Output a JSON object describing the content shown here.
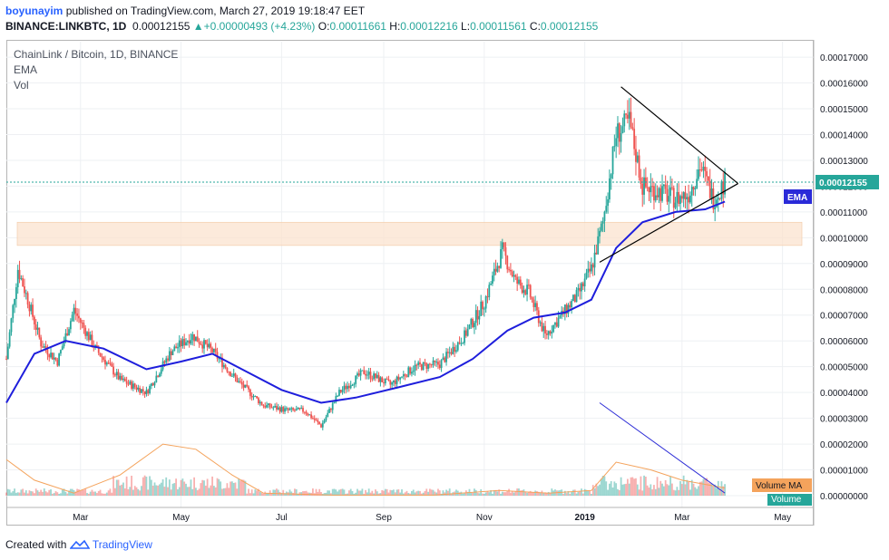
{
  "header": {
    "username": "boyunayim",
    "published_text": "published on TradingView.com, March 27, 2019 19:18:47 EET",
    "symbol": "BINANCE:LINKBTC, 1D",
    "last_price": "0.00012155",
    "change_arrow": "▲",
    "change": "+0.00000493 (+4.23%)",
    "o_label": "O:",
    "o_value": "0.00011661",
    "h_label": "H:",
    "h_value": "0.00012216",
    "l_label": "L:",
    "l_value": "0.00011561",
    "c_label": "C:",
    "c_value": "0.00012155"
  },
  "legend": {
    "title": "ChainLink / Bitcoin, 1D, BINANCE",
    "ema": "EMA",
    "vol": "Vol"
  },
  "labels": {
    "price_tag": "0.00012155",
    "ema_tag": "EMA",
    "volume_ma_tag": "Volume MA",
    "volume_tag": "Volume"
  },
  "footer": {
    "created_with": "Created with",
    "brand": "TradingView"
  },
  "colors": {
    "up": "#26a69a",
    "down": "#ef5350",
    "ema": "#1e1edc",
    "volume_ma": "#f4a35c",
    "zone": "#fbe3cf",
    "price_tag": "#26a69a",
    "ema_tag": "#2a2ad8",
    "volume_ma_tag": "#f4a35c"
  },
  "chart_data": {
    "type": "candlestick",
    "title": "ChainLink / Bitcoin, 1D, BINANCE",
    "x_ticks": [
      "Mar",
      "May",
      "Jul",
      "Sep",
      "Nov",
      "2019",
      "Mar",
      "May"
    ],
    "y_ticks": [
      "0.00017000",
      "0.00016000",
      "0.00015000",
      "0.00014000",
      "0.00013000",
      "0.00012000",
      "0.00011000",
      "0.00010000",
      "0.00009000",
      "0.00008000",
      "0.00007000",
      "0.00006000",
      "0.00005000",
      "0.00004000",
      "0.00003000",
      "0.00002000",
      "0.00001000",
      "0.00000000"
    ],
    "ylim": [
      0.0,
      0.000176
    ],
    "last_close": 0.00012155,
    "price_path": [
      [
        "2018-01-15",
        5.3e-05
      ],
      [
        "2018-01-22",
        8.8e-05
      ],
      [
        "2018-01-28",
        7.6e-05
      ],
      [
        "2018-02-05",
        5.9e-05
      ],
      [
        "2018-02-15",
        5.2e-05
      ],
      [
        "2018-02-25",
        7.2e-05
      ],
      [
        "2018-03-10",
        5.7e-05
      ],
      [
        "2018-03-25",
        4.5e-05
      ],
      [
        "2018-04-10",
        4e-05
      ],
      [
        "2018-04-25",
        5.6e-05
      ],
      [
        "2018-05-08",
        6.2e-05
      ],
      [
        "2018-05-20",
        5.6e-05
      ],
      [
        "2018-06-05",
        4.4e-05
      ],
      [
        "2018-06-20",
        3.5e-05
      ],
      [
        "2018-07-05",
        3.3e-05
      ],
      [
        "2018-07-15",
        3.3e-05
      ],
      [
        "2018-07-25",
        2.7e-05
      ],
      [
        "2018-08-05",
        4e-05
      ],
      [
        "2018-08-20",
        4.8e-05
      ],
      [
        "2018-09-05",
        4.3e-05
      ],
      [
        "2018-09-20",
        5e-05
      ],
      [
        "2018-10-05",
        5.1e-05
      ],
      [
        "2018-10-20",
        6.2e-05
      ],
      [
        "2018-11-01",
        7.5e-05
      ],
      [
        "2018-11-12",
        9.5e-05
      ],
      [
        "2018-11-20",
        8.3e-05
      ],
      [
        "2018-11-28",
        7.9e-05
      ],
      [
        "2018-12-08",
        6.2e-05
      ],
      [
        "2018-12-18",
        7e-05
      ],
      [
        "2018-12-28",
        7.8e-05
      ],
      [
        "2019-01-05",
        8.8e-05
      ],
      [
        "2019-01-12",
        0.000106
      ],
      [
        "2019-01-20",
        0.00014
      ],
      [
        "2019-01-28",
        0.000145
      ],
      [
        "2019-02-05",
        0.00012
      ],
      [
        "2019-02-15",
        0.000118
      ],
      [
        "2019-02-25",
        0.000115
      ],
      [
        "2019-03-05",
        0.000117
      ],
      [
        "2019-03-12",
        0.000128
      ],
      [
        "2019-03-20",
        0.000115
      ],
      [
        "2019-03-27",
        0.0001216
      ]
    ],
    "ema_path": [
      [
        "2018-01-15",
        3.6e-05
      ],
      [
        "2018-02-01",
        5.5e-05
      ],
      [
        "2018-02-20",
        6e-05
      ],
      [
        "2018-03-15",
        5.7e-05
      ],
      [
        "2018-04-10",
        4.9e-05
      ],
      [
        "2018-05-01",
        5.2e-05
      ],
      [
        "2018-05-20",
        5.5e-05
      ],
      [
        "2018-06-10",
        4.8e-05
      ],
      [
        "2018-07-01",
        4.1e-05
      ],
      [
        "2018-07-25",
        3.6e-05
      ],
      [
        "2018-08-15",
        3.8e-05
      ],
      [
        "2018-09-10",
        4.2e-05
      ],
      [
        "2018-10-05",
        4.6e-05
      ],
      [
        "2018-10-25",
        5.3e-05
      ],
      [
        "2018-11-15",
        6.4e-05
      ],
      [
        "2018-12-01",
        6.9e-05
      ],
      [
        "2018-12-20",
        7.1e-05
      ],
      [
        "2019-01-05",
        7.6e-05
      ],
      [
        "2019-01-20",
        9.6e-05
      ],
      [
        "2019-02-05",
        0.000106
      ],
      [
        "2019-02-25",
        0.00011
      ],
      [
        "2019-03-15",
        0.000111
      ],
      [
        "2019-03-27",
        0.000114
      ]
    ],
    "volume_ma_path": [
      [
        "2018-01-15",
        1.4e-05
      ],
      [
        "2018-02-01",
        6e-06
      ],
      [
        "2018-02-25",
        1e-06
      ],
      [
        "2018-03-25",
        8e-06
      ],
      [
        "2018-04-20",
        2e-05
      ],
      [
        "2018-05-10",
        1.8e-05
      ],
      [
        "2018-06-01",
        8e-06
      ],
      [
        "2018-06-20",
        1e-06
      ],
      [
        "2018-08-01",
        2e-07
      ],
      [
        "2018-10-01",
        2e-07
      ],
      [
        "2018-11-10",
        2e-06
      ],
      [
        "2018-12-10",
        1e-06
      ],
      [
        "2019-01-05",
        2e-06
      ],
      [
        "2019-01-20",
        1.3e-05
      ],
      [
        "2019-02-10",
        1e-05
      ],
      [
        "2019-03-01",
        6e-06
      ],
      [
        "2019-03-27",
        3e-06
      ]
    ],
    "annotations": {
      "support_zone": [
        9.7e-05,
        0.000106
      ],
      "triangle_upper": [
        [
          "2019-01-23",
          0.0001585
        ],
        [
          "2019-04-04",
          0.000121
        ]
      ],
      "triangle_lower": [
        [
          "2019-01-10",
          9.05e-05
        ],
        [
          "2019-04-04",
          0.000121
        ]
      ],
      "volume_trendline": [
        [
          "2019-01-10",
          3.6e-05
        ],
        [
          "2019-03-27",
          1e-06
        ]
      ]
    }
  }
}
